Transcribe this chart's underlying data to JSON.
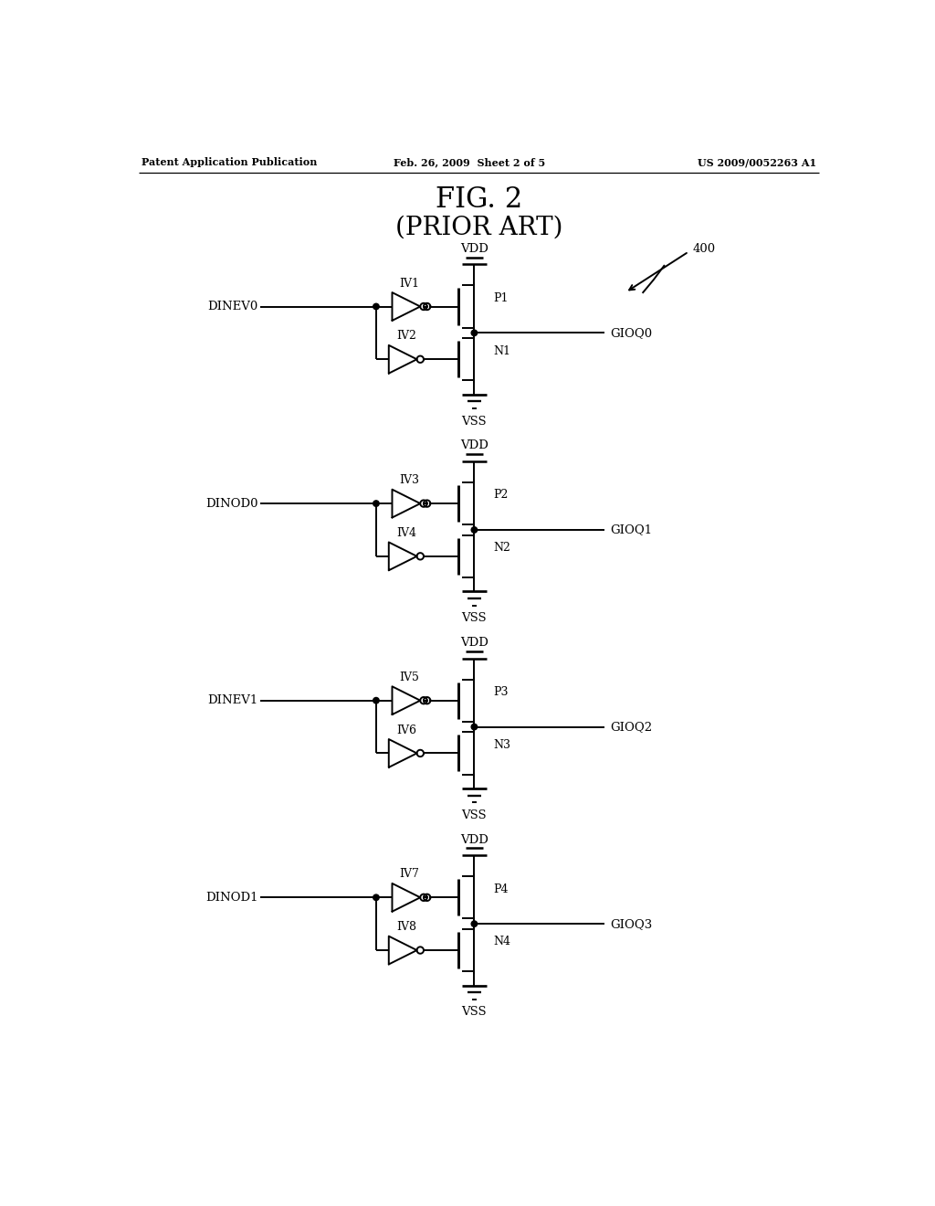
{
  "title1": "FIG. 2",
  "title2": "(PRIOR ART)",
  "header_left": "Patent Application Publication",
  "header_mid": "Feb. 26, 2009  Sheet 2 of 5",
  "header_right": "US 2009/0052263 A1",
  "ref_number": "400",
  "blocks": [
    {
      "input_label": "DINEV0",
      "iv_top": "IV1",
      "iv_bot": "IV2",
      "p_label": "P1",
      "n_label": "N1",
      "out_label": "GIOQ0"
    },
    {
      "input_label": "DINOD0",
      "iv_top": "IV3",
      "iv_bot": "IV4",
      "p_label": "P2",
      "n_label": "N2",
      "out_label": "GIOQ1"
    },
    {
      "input_label": "DINEV1",
      "iv_top": "IV5",
      "iv_bot": "IV6",
      "p_label": "P3",
      "n_label": "N3",
      "out_label": "GIOQ2"
    },
    {
      "input_label": "DINOD1",
      "iv_top": "IV7",
      "iv_bot": "IV8",
      "p_label": "P4",
      "n_label": "N4",
      "out_label": "GIOQ3"
    }
  ],
  "block_tops": [
    11.8,
    9.0,
    6.2,
    3.4
  ],
  "fig_width": 10.24,
  "fig_height": 13.2,
  "lw": 1.4
}
